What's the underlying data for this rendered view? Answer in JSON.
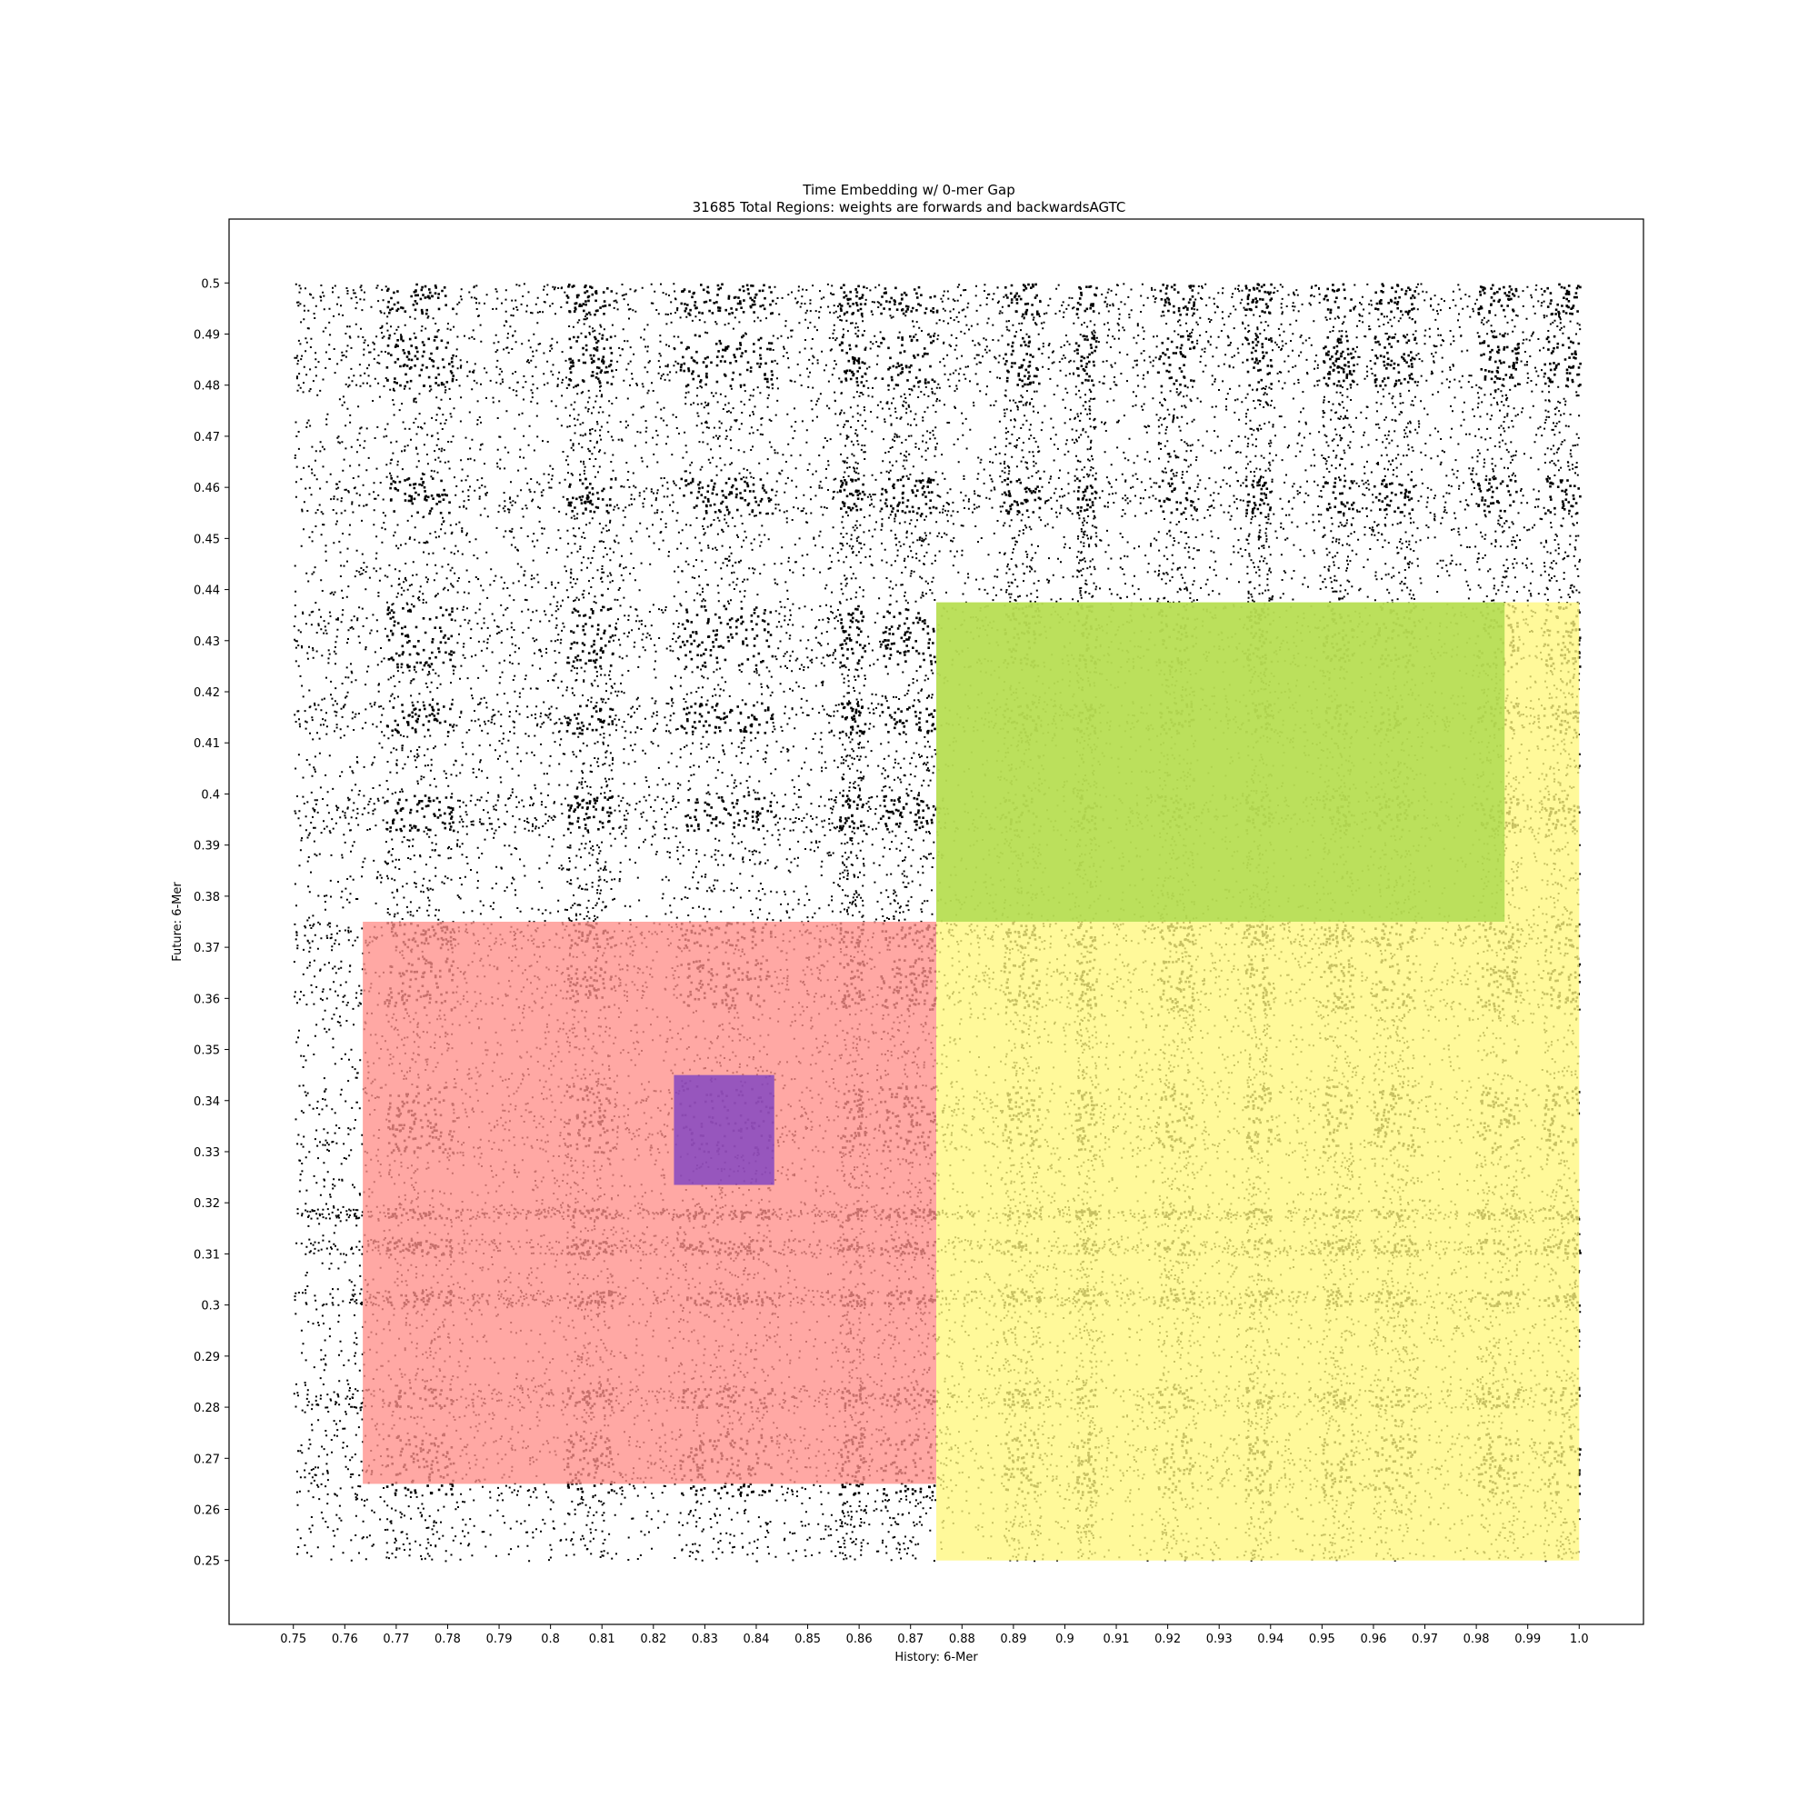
{
  "chart_data": {
    "type": "scatter",
    "title": "Time Embedding w/ 0-mer Gap",
    "subtitle": "31685 Total Regions: weights are forwards and backwardsAGTC",
    "xlabel": "History: 6-Mer",
    "ylabel": "Future: 6-Mer",
    "xlim": [
      0.7375,
      1.0125
    ],
    "ylim": [
      0.2375,
      0.5125
    ],
    "xticks": [
      "0.75",
      "0.76",
      "0.77",
      "0.78",
      "0.79",
      "0.8",
      "0.81",
      "0.82",
      "0.83",
      "0.84",
      "0.85",
      "0.86",
      "0.87",
      "0.88",
      "0.89",
      "0.9",
      "0.91",
      "0.92",
      "0.93",
      "0.94",
      "0.95",
      "0.96",
      "0.97",
      "0.98",
      "0.99",
      "1.0"
    ],
    "yticks": [
      "0.25",
      "0.26",
      "0.27",
      "0.28",
      "0.29",
      "0.3",
      "0.31",
      "0.32",
      "0.33",
      "0.34",
      "0.35",
      "0.36",
      "0.37",
      "0.38",
      "0.39",
      "0.4",
      "0.41",
      "0.42",
      "0.43",
      "0.44",
      "0.45",
      "0.46",
      "0.47",
      "0.48",
      "0.49",
      "0.5"
    ],
    "grid": false,
    "point_color": "#000000",
    "point_domain": {
      "x": [
        0.75,
        1.0
      ],
      "y": [
        0.25,
        0.5
      ]
    },
    "dense_bands_x": [
      [
        0.768,
        0.781
      ],
      [
        0.803,
        0.812
      ],
      [
        0.825,
        0.843
      ],
      [
        0.856,
        0.861
      ],
      [
        0.864,
        0.875
      ],
      [
        0.888,
        0.895
      ],
      [
        0.902,
        0.906
      ],
      [
        0.918,
        0.925
      ],
      [
        0.935,
        0.94
      ],
      [
        0.95,
        0.956
      ],
      [
        0.96,
        0.968
      ],
      [
        0.98,
        0.988
      ],
      [
        0.993,
        1.0
      ]
    ],
    "dense_bands_y": [
      [
        0.263,
        0.275
      ],
      [
        0.28,
        0.284
      ],
      [
        0.3,
        0.303
      ],
      [
        0.31,
        0.313
      ],
      [
        0.317,
        0.319
      ],
      [
        0.33,
        0.343
      ],
      [
        0.358,
        0.368
      ],
      [
        0.37,
        0.375
      ],
      [
        0.393,
        0.4
      ],
      [
        0.412,
        0.418
      ],
      [
        0.425,
        0.437
      ],
      [
        0.455,
        0.462
      ],
      [
        0.48,
        0.49
      ],
      [
        0.494,
        0.5
      ]
    ],
    "highlight_regions": [
      {
        "x": [
          0.875,
          1.0
        ],
        "y": [
          0.25,
          0.375
        ],
        "color": "#fff77e"
      },
      {
        "x": [
          0.875,
          1.0
        ],
        "y": [
          0.375,
          0.4375
        ],
        "color": "#fff77e"
      },
      {
        "x": [
          0.875,
          0.9855
        ],
        "y": [
          0.375,
          0.4375
        ],
        "color": "#a8d84a"
      },
      {
        "x": [
          0.7635,
          0.875
        ],
        "y": [
          0.265,
          0.375
        ],
        "color": "#ff8f8a"
      },
      {
        "x": [
          0.824,
          0.8435
        ],
        "y": [
          0.3235,
          0.345
        ],
        "color": "#7a3fc4"
      }
    ]
  }
}
